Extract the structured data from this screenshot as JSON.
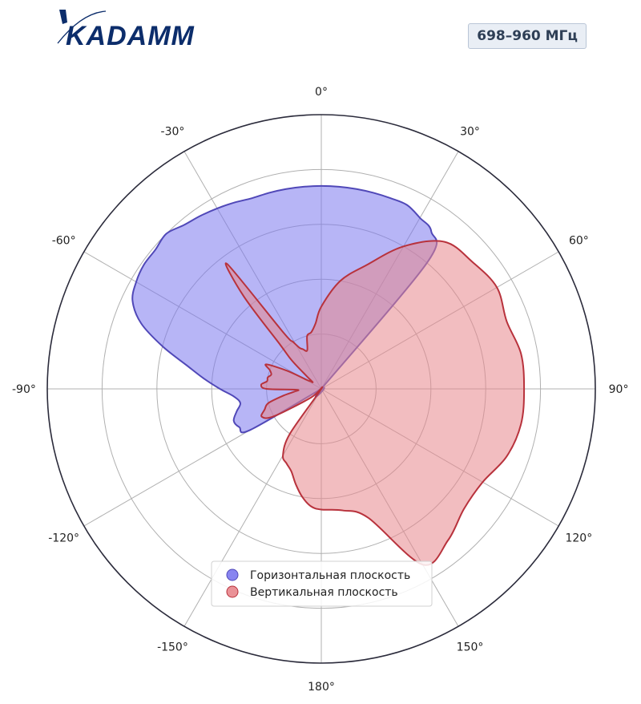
{
  "brand": {
    "logo_text": "KADAMM",
    "badge": "698–960 МГц"
  },
  "chart_data": {
    "type": "polar",
    "angle_direction": "clockwise",
    "zero_location": "top",
    "r_range": [
      0,
      1
    ],
    "r_grid": [
      0.2,
      0.4,
      0.6,
      0.8,
      1.0
    ],
    "angle_ticks": [
      0,
      30,
      60,
      90,
      120,
      150,
      180,
      -150,
      -120,
      -90,
      -60,
      -30
    ],
    "angle_tick_labels": [
      "0°",
      "30°",
      "60°",
      "90°",
      "120°",
      "150°",
      "180°",
      "-150°",
      "-120°",
      "-90°",
      "-60°",
      "-30°"
    ],
    "grid": true,
    "legend_location": "lower center",
    "series": [
      {
        "name": "Горизонтальная плоскость",
        "color": "#7b78ee",
        "edge_color": "#5048b8",
        "angles": [
          -123,
          -120,
          -115,
          -110,
          -105,
          -100,
          -95,
          -90,
          -85,
          -80,
          -75,
          -70,
          -65,
          -60,
          -55,
          -50,
          -45,
          -40,
          -35,
          -30,
          -25,
          -20,
          -15,
          -10,
          -5,
          0,
          5,
          10,
          15,
          20,
          25,
          30,
          35,
          40,
          45
        ],
        "r": [
          0.0,
          0.3,
          0.33,
          0.34,
          0.32,
          0.3,
          0.32,
          0.37,
          0.43,
          0.5,
          0.6,
          0.7,
          0.76,
          0.78,
          0.79,
          0.79,
          0.8,
          0.78,
          0.77,
          0.76,
          0.75,
          0.74,
          0.74,
          0.74,
          0.74,
          0.74,
          0.74,
          0.74,
          0.74,
          0.74,
          0.74,
          0.72,
          0.7,
          0.6,
          0.0
        ]
      },
      {
        "name": "Вертикальная плоскость",
        "color": "#e8868c",
        "edge_color": "#b8323c",
        "angles": [
          -140,
          -130,
          -120,
          -115,
          -110,
          -105,
          -100,
          -96,
          -92,
          -90,
          -86,
          -82,
          -78,
          -74,
          -70,
          -66,
          -62,
          -58,
          -55,
          -52,
          -49,
          -46,
          -43,
          -40,
          -37,
          -34,
          -31,
          -28,
          -25,
          -20,
          -15,
          -10,
          -5,
          0,
          10,
          20,
          30,
          40,
          50,
          60,
          70,
          80,
          90,
          100,
          110,
          120,
          130,
          140,
          150,
          160,
          170,
          180,
          -175,
          -170,
          -165,
          -160,
          -155,
          -150,
          -145
        ],
        "r": [
          0.0,
          0.05,
          0.2,
          0.24,
          0.22,
          0.2,
          0.14,
          0.1,
          0.09,
          0.2,
          0.22,
          0.2,
          0.2,
          0.19,
          0.2,
          0.22,
          0.14,
          0.06,
          0.05,
          0.04,
          0.07,
          0.15,
          0.22,
          0.44,
          0.57,
          0.25,
          0.2,
          0.17,
          0.16,
          0.15,
          0.2,
          0.21,
          0.24,
          0.3,
          0.4,
          0.48,
          0.6,
          0.7,
          0.72,
          0.74,
          0.72,
          0.74,
          0.74,
          0.74,
          0.72,
          0.68,
          0.68,
          0.72,
          0.74,
          0.5,
          0.45,
          0.44,
          0.43,
          0.4,
          0.36,
          0.32,
          0.3,
          0.28,
          0.2
        ]
      }
    ]
  }
}
